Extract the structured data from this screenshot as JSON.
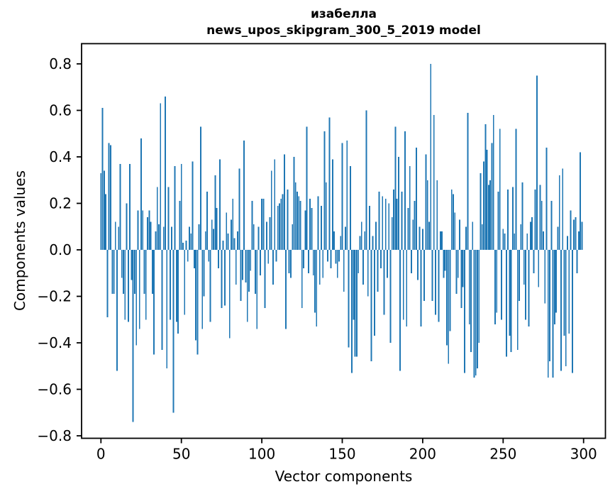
{
  "chart_data": {
    "type": "bar",
    "title": "изабелла",
    "subtitle": "news_upos_skipgram_300_5_2019 model",
    "xlabel": "Vector components",
    "ylabel": "Components values",
    "bar_color": "#1f77b4",
    "axis_color": "#000000",
    "background_color": "#ffffff",
    "grid": false,
    "legend": null,
    "n_components": 300,
    "x_ticks": [
      0,
      50,
      100,
      150,
      200,
      250,
      300
    ],
    "y_ticks": [
      0.8,
      0.6,
      0.4,
      0.2,
      0.0,
      -0.2,
      -0.4,
      -0.6,
      -0.8
    ],
    "y_tick_labels": [
      "0.8",
      "0.6",
      "0.4",
      "0.2",
      "0.0",
      "−0.2",
      "−0.4",
      "−0.6",
      "−0.8"
    ],
    "xlim": [
      -12,
      313
    ],
    "ylim": [
      -0.81,
      0.885
    ],
    "values": [
      0.33,
      0.61,
      0.34,
      0.24,
      -0.29,
      0.46,
      0.45,
      -0.19,
      -0.19,
      0.12,
      -0.52,
      0.1,
      0.37,
      -0.12,
      -0.19,
      -0.3,
      0.2,
      -0.31,
      0.37,
      -0.13,
      -0.74,
      -0.19,
      -0.41,
      0.17,
      -0.34,
      0.48,
      0.17,
      -0.19,
      -0.3,
      0.14,
      0.17,
      0.12,
      -0.19,
      -0.45,
      0.08,
      0.27,
      0.11,
      0.63,
      -0.43,
      0.1,
      0.66,
      -0.51,
      0.27,
      -0.3,
      0.1,
      -0.7,
      0.36,
      -0.31,
      -0.36,
      0.21,
      0.37,
      0.03,
      -0.28,
      0.04,
      -0.05,
      0.1,
      0.07,
      0.38,
      -0.08,
      -0.39,
      -0.45,
      0.11,
      0.53,
      -0.34,
      -0.2,
      0.08,
      0.25,
      -0.05,
      -0.31,
      0.13,
      0.09,
      0.32,
      0.18,
      -0.08,
      0.39,
      -0.25,
      0.04,
      -0.24,
      0.16,
      0.07,
      -0.38,
      0.13,
      0.22,
      0.05,
      -0.15,
      0.08,
      0.35,
      -0.22,
      -0.13,
      0.47,
      -0.14,
      -0.31,
      -0.18,
      -0.09,
      0.21,
      0.11,
      -0.19,
      -0.34,
      0.1,
      -0.11,
      0.22,
      0.22,
      -0.25,
      0.12,
      -0.06,
      0.14,
      0.34,
      -0.15,
      0.39,
      -0.05,
      0.19,
      0.2,
      0.22,
      0.24,
      0.41,
      -0.34,
      0.26,
      -0.1,
      -0.12,
      0.11,
      0.4,
      0.29,
      0.25,
      0.23,
      0.21,
      -0.25,
      -0.08,
      0.17,
      0.53,
      -0.1,
      0.22,
      0.18,
      -0.11,
      -0.27,
      -0.33,
      0.23,
      -0.15,
      0.19,
      -0.12,
      0.51,
      0.29,
      -0.05,
      0.57,
      -0.08,
      0.39,
      0.08,
      -0.06,
      -0.12,
      -0.05,
      0.06,
      0.46,
      -0.18,
      0.1,
      0.47,
      -0.42,
      0.36,
      -0.53,
      -0.3,
      -0.46,
      -0.46,
      -0.1,
      0.06,
      0.12,
      -0.15,
      0.08,
      0.6,
      -0.2,
      0.19,
      -0.48,
      0.06,
      -0.37,
      0.12,
      -0.18,
      0.25,
      -0.08,
      0.23,
      -0.28,
      0.22,
      -0.12,
      0.2,
      -0.4,
      0.14,
      0.26,
      0.53,
      0.22,
      0.4,
      -0.52,
      0.25,
      -0.3,
      0.51,
      -0.33,
      0.18,
      0.36,
      -0.1,
      0.13,
      0.21,
      0.44,
      -0.13,
      0.1,
      -0.33,
      0.09,
      -0.22,
      0.41,
      0.3,
      0.12,
      0.8,
      -0.22,
      0.58,
      -0.28,
      0.3,
      -0.31,
      0.08,
      0.08,
      -0.12,
      -0.09,
      -0.41,
      -0.49,
      -0.35,
      0.26,
      0.24,
      0.16,
      -0.19,
      -0.12,
      0.13,
      -0.25,
      -0.16,
      -0.53,
      0.1,
      0.59,
      -0.32,
      -0.44,
      0.12,
      -0.55,
      -0.54,
      -0.51,
      -0.4,
      0.33,
      0.11,
      0.38,
      0.54,
      0.43,
      0.28,
      0.3,
      0.46,
      0.58,
      -0.32,
      -0.27,
      0.25,
      0.52,
      -0.3,
      0.09,
      0.07,
      -0.46,
      0.26,
      -0.37,
      -0.44,
      0.27,
      0.07,
      0.52,
      -0.43,
      -0.22,
      0.11,
      0.29,
      -0.15,
      -0.3,
      0.07,
      -0.33,
      0.12,
      0.14,
      -0.1,
      0.26,
      0.75,
      -0.16,
      0.28,
      0.21,
      0.08,
      -0.23,
      0.44,
      -0.55,
      -0.48,
      0.21,
      -0.55,
      -0.32,
      -0.27,
      0.1,
      0.32,
      -0.52,
      0.35,
      -0.37,
      -0.5,
      0.06,
      -0.36,
      0.17,
      -0.53,
      0.13,
      0.14,
      -0.1,
      0.08,
      0.42,
      0.12
    ]
  }
}
